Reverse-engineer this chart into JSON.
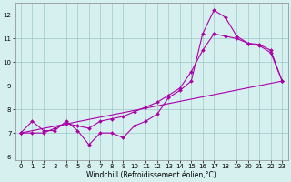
{
  "title": "",
  "xlabel": "Windchill (Refroidissement éolien,°C)",
  "bg_color": "#d6f0f0",
  "plot_bg_color": "#d6f0f0",
  "line_color": "#aa00aa",
  "grid_color": "#a0c8c8",
  "xlim_min": -0.5,
  "xlim_max": 23.5,
  "ylim_min": 5.85,
  "ylim_max": 12.5,
  "yticks": [
    6,
    7,
    8,
    9,
    10,
    11,
    12
  ],
  "xticks": [
    0,
    1,
    2,
    3,
    4,
    5,
    6,
    7,
    8,
    9,
    10,
    11,
    12,
    13,
    14,
    15,
    16,
    17,
    18,
    19,
    20,
    21,
    22,
    23
  ],
  "line1_x": [
    0,
    1,
    2,
    3,
    4,
    5,
    6,
    7,
    8,
    9,
    10,
    11,
    12,
    13,
    14,
    15,
    16,
    17,
    18,
    19,
    20,
    21,
    22,
    23
  ],
  "line1_y": [
    7.0,
    7.5,
    7.1,
    7.1,
    7.5,
    7.1,
    6.5,
    7.0,
    7.0,
    6.8,
    7.3,
    7.5,
    7.8,
    8.5,
    8.8,
    9.2,
    11.2,
    12.2,
    11.9,
    11.1,
    10.8,
    10.7,
    10.4,
    9.2
  ],
  "line2_x": [
    0,
    1,
    2,
    3,
    4,
    5,
    6,
    7,
    8,
    9,
    10,
    11,
    12,
    13,
    14,
    15,
    16,
    17,
    18,
    19,
    20,
    21,
    22,
    23
  ],
  "line2_y": [
    7.0,
    7.0,
    7.0,
    7.2,
    7.4,
    7.3,
    7.2,
    7.5,
    7.6,
    7.7,
    7.9,
    8.1,
    8.3,
    8.6,
    8.9,
    9.6,
    10.5,
    11.2,
    11.1,
    11.0,
    10.8,
    10.75,
    10.5,
    9.2
  ],
  "line3_x": [
    0,
    23
  ],
  "line3_y": [
    7.0,
    9.2
  ],
  "tick_labelsize": 5,
  "xlabel_fontsize": 5.5,
  "marker_size": 2.0,
  "linewidth": 0.8
}
